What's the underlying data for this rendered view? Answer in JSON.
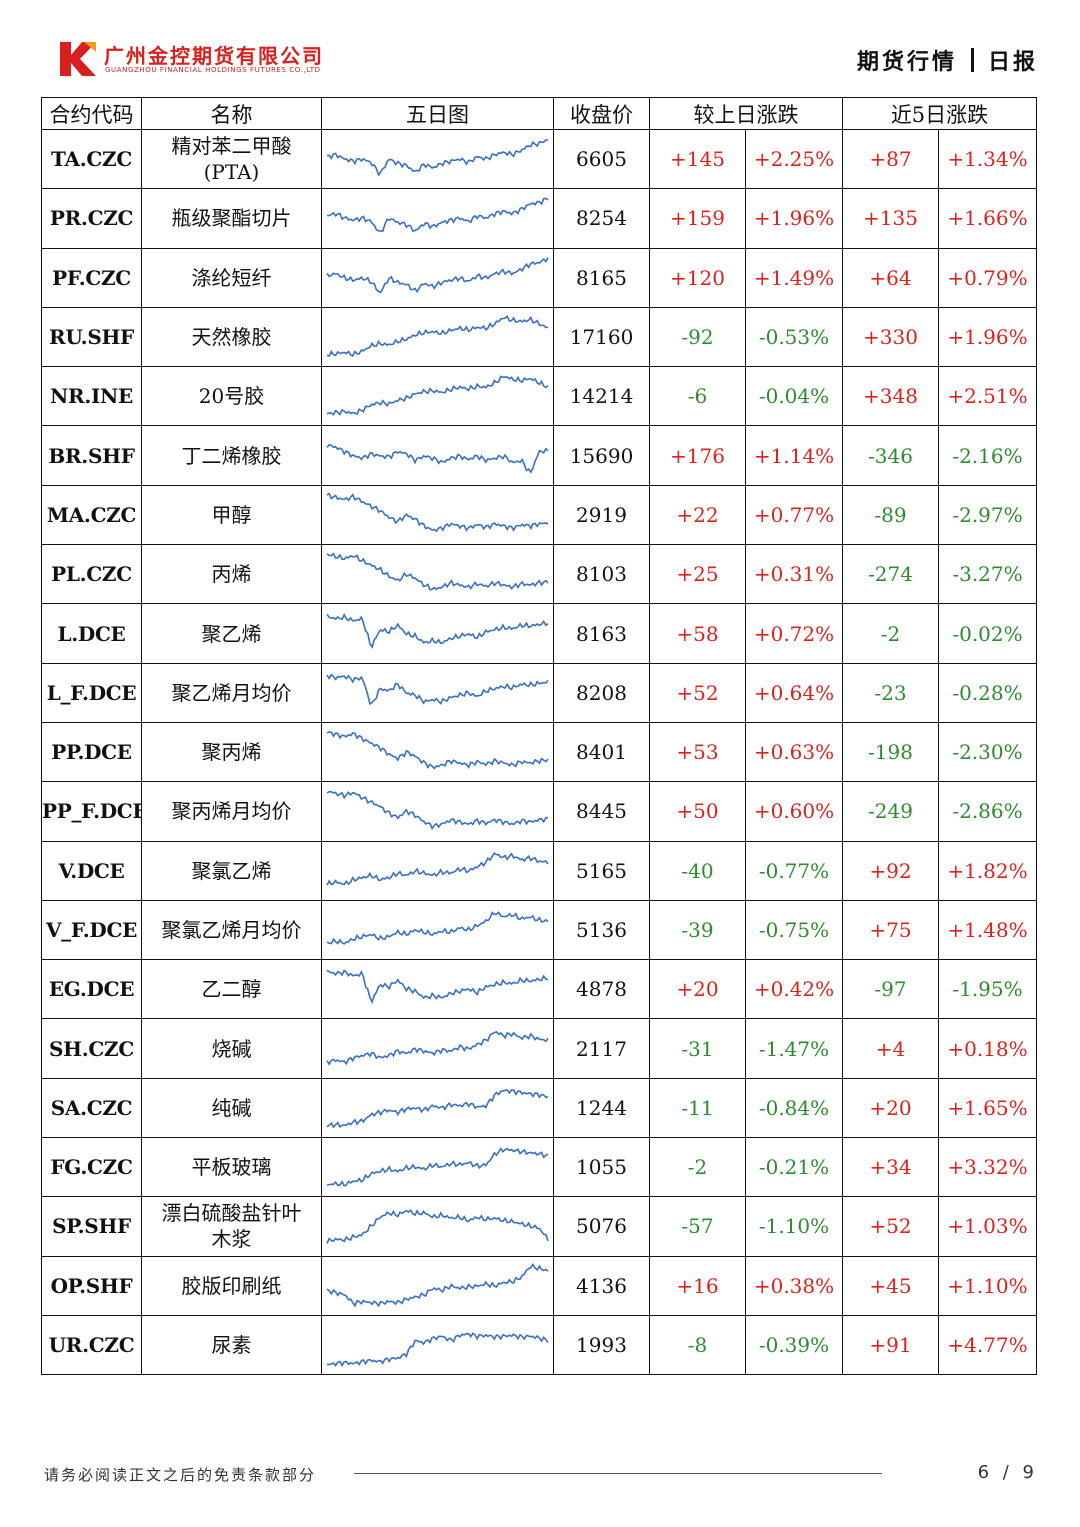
{
  "header": {
    "company_cn": "广州金控期货有限公司",
    "company_en": "GUANGZHOU FINANCIAL HOLDINGS FUTURES CO.,LTD",
    "report_type": "期货行情",
    "frequency": "日报",
    "brand_color": "#d8201e"
  },
  "table": {
    "columns": [
      "合约代码",
      "名称",
      "五日图",
      "收盘价",
      "较上日涨跌",
      "近5日涨跌"
    ],
    "rows": [
      {
        "code": "TA.CZC",
        "name": "精对苯二甲酸\n(PTA)",
        "close": "6605",
        "d_chg": "+145",
        "d_pct": "+2.25%",
        "w_chg": "+87",
        "w_pct": "+1.34%",
        "spark": "A"
      },
      {
        "code": "PR.CZC",
        "name": "瓶级聚酯切片",
        "close": "8254",
        "d_chg": "+159",
        "d_pct": "+1.96%",
        "w_chg": "+135",
        "w_pct": "+1.66%",
        "spark": "A"
      },
      {
        "code": "PF.CZC",
        "name": "涤纶短纤",
        "close": "8165",
        "d_chg": "+120",
        "d_pct": "+1.49%",
        "w_chg": "+64",
        "w_pct": "+0.79%",
        "spark": "A"
      },
      {
        "code": "RU.SHF",
        "name": "天然橡胶",
        "close": "17160",
        "d_chg": "-92",
        "d_pct": "-0.53%",
        "w_chg": "+330",
        "w_pct": "+1.96%",
        "spark": "B"
      },
      {
        "code": "NR.INE",
        "name": "20号胶",
        "close": "14214",
        "d_chg": "-6",
        "d_pct": "-0.04%",
        "w_chg": "+348",
        "w_pct": "+2.51%",
        "spark": "B"
      },
      {
        "code": "BR.SHF",
        "name": "丁二烯橡胶",
        "close": "15690",
        "d_chg": "+176",
        "d_pct": "+1.14%",
        "w_chg": "-346",
        "w_pct": "-2.16%",
        "spark": "C"
      },
      {
        "code": "MA.CZC",
        "name": "甲醇",
        "close": "2919",
        "d_chg": "+22",
        "d_pct": "+0.77%",
        "w_chg": "-89",
        "w_pct": "-2.97%",
        "spark": "D"
      },
      {
        "code": "PL.CZC",
        "name": "丙烯",
        "close": "8103",
        "d_chg": "+25",
        "d_pct": "+0.31%",
        "w_chg": "-274",
        "w_pct": "-3.27%",
        "spark": "D"
      },
      {
        "code": "L.DCE",
        "name": "聚乙烯",
        "close": "8163",
        "d_chg": "+58",
        "d_pct": "+0.72%",
        "w_chg": "-2",
        "w_pct": "-0.02%",
        "spark": "E"
      },
      {
        "code": "L_F.DCE",
        "name": "聚乙烯月均价",
        "close": "8208",
        "d_chg": "+52",
        "d_pct": "+0.64%",
        "w_chg": "-23",
        "w_pct": "-0.28%",
        "spark": "E"
      },
      {
        "code": "PP.DCE",
        "name": "聚丙烯",
        "close": "8401",
        "d_chg": "+53",
        "d_pct": "+0.63%",
        "w_chg": "-198",
        "w_pct": "-2.30%",
        "spark": "D"
      },
      {
        "code": "PP_F.DCE",
        "name": "聚丙烯月均价",
        "close": "8445",
        "d_chg": "+50",
        "d_pct": "+0.60%",
        "w_chg": "-249",
        "w_pct": "-2.86%",
        "spark": "D"
      },
      {
        "code": "V.DCE",
        "name": "聚氯乙烯",
        "close": "5165",
        "d_chg": "-40",
        "d_pct": "-0.77%",
        "w_chg": "+92",
        "w_pct": "+1.82%",
        "spark": "F"
      },
      {
        "code": "V_F.DCE",
        "name": "聚氯乙烯月均价",
        "close": "5136",
        "d_chg": "-39",
        "d_pct": "-0.75%",
        "w_chg": "+75",
        "w_pct": "+1.48%",
        "spark": "F"
      },
      {
        "code": "EG.DCE",
        "name": "乙二醇",
        "close": "4878",
        "d_chg": "+20",
        "d_pct": "+0.42%",
        "w_chg": "-97",
        "w_pct": "-1.95%",
        "spark": "E"
      },
      {
        "code": "SH.CZC",
        "name": "烧碱",
        "close": "2117",
        "d_chg": "-31",
        "d_pct": "-1.47%",
        "w_chg": "+4",
        "w_pct": "+0.18%",
        "spark": "F"
      },
      {
        "code": "SA.CZC",
        "name": "纯碱",
        "close": "1244",
        "d_chg": "-11",
        "d_pct": "-0.84%",
        "w_chg": "+20",
        "w_pct": "+1.65%",
        "spark": "G"
      },
      {
        "code": "FG.CZC",
        "name": "平板玻璃",
        "close": "1055",
        "d_chg": "-2",
        "d_pct": "-0.21%",
        "w_chg": "+34",
        "w_pct": "+3.32%",
        "spark": "G"
      },
      {
        "code": "SP.SHF",
        "name": "漂白硫酸盐针叶\n木浆",
        "close": "5076",
        "d_chg": "-57",
        "d_pct": "-1.10%",
        "w_chg": "+52",
        "w_pct": "+1.03%",
        "spark": "H"
      },
      {
        "code": "OP.SHF",
        "name": "胶版印刷纸",
        "close": "4136",
        "d_chg": "+16",
        "d_pct": "+0.38%",
        "w_chg": "+45",
        "w_pct": "+1.10%",
        "spark": "I"
      },
      {
        "code": "UR.CZC",
        "name": "尿素",
        "close": "1993",
        "d_chg": "-8",
        "d_pct": "-0.39%",
        "w_chg": "+91",
        "w_pct": "+4.77%",
        "spark": "J"
      }
    ],
    "up_color": "#e0201c",
    "down_color": "#2e8b2e",
    "spark_color": "#3a6fc4"
  },
  "footer": {
    "disclaimer": "请务必阅读正文之后的免责条款部分",
    "page": "6 / 9"
  }
}
